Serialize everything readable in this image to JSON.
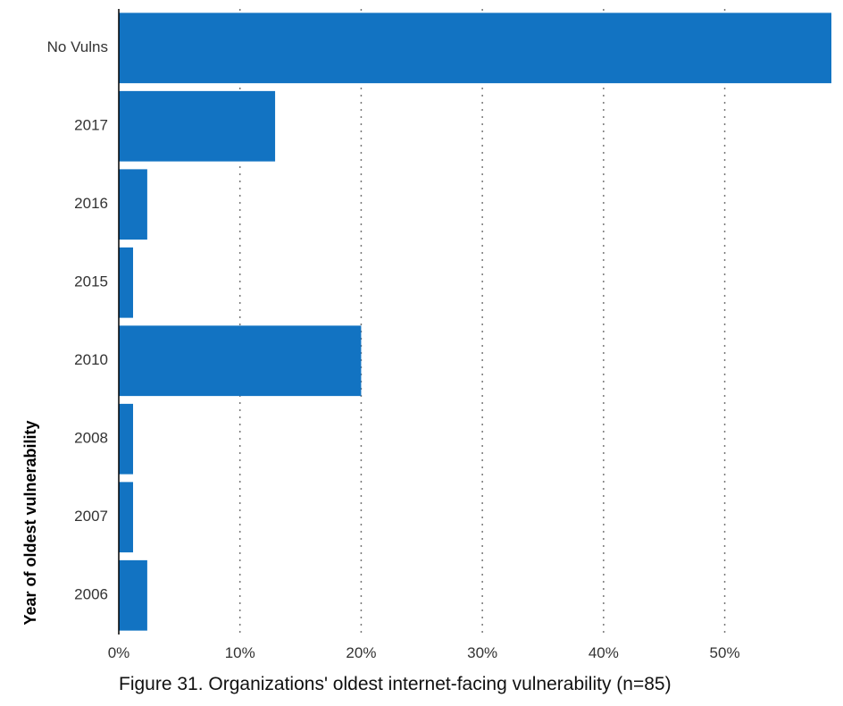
{
  "chart_data": {
    "type": "bar",
    "orientation": "horizontal",
    "title": "Figure 31. Organizations' oldest internet-facing vulnerability (n=85)",
    "xlabel": "",
    "ylabel": "Year of oldest vulnerability",
    "categories": [
      "No Vulns",
      "2017",
      "2016",
      "2015",
      "2010",
      "2008",
      "2007",
      "2006"
    ],
    "values": [
      58.8,
      12.9,
      2.35,
      1.18,
      20.0,
      1.18,
      1.18,
      2.35
    ],
    "x_ticks": [
      0,
      10,
      20,
      30,
      40,
      50
    ],
    "x_tick_labels": [
      "0%",
      "10%",
      "20%",
      "30%",
      "40%",
      "50%"
    ],
    "xlim": [
      0,
      58.8
    ],
    "grid": "vertical dotted",
    "legend": "none",
    "colors": {
      "bar": "#1273c2",
      "grid": "#777777",
      "axis": "#000000"
    }
  }
}
